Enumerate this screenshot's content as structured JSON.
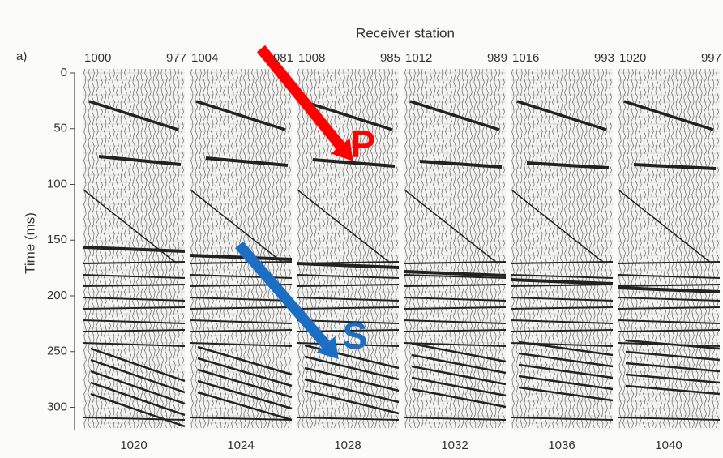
{
  "chart_data": {
    "type": "seismic",
    "panel_label": "a)",
    "title": "Receiver station",
    "y_label": "Time (ms)",
    "ylim": [
      0,
      320
    ],
    "yticks": [
      0,
      50,
      100,
      150,
      200,
      250,
      300
    ],
    "panels": [
      {
        "top_labels": [
          1000,
          977
        ],
        "bottom_label": 1020
      },
      {
        "top_labels": [
          1004,
          981
        ],
        "bottom_label": 1024
      },
      {
        "top_labels": [
          1008,
          985
        ],
        "bottom_label": 1028
      },
      {
        "top_labels": [
          1012,
          989
        ],
        "bottom_label": 1032
      },
      {
        "top_labels": [
          1016,
          993
        ],
        "bottom_label": 1036
      },
      {
        "top_labels": [
          1020,
          997
        ],
        "bottom_label": 1040
      }
    ],
    "annotations": [
      {
        "text": "P",
        "color": "#ff0000"
      },
      {
        "text": "S",
        "color": "#1a6fc4"
      }
    ]
  }
}
